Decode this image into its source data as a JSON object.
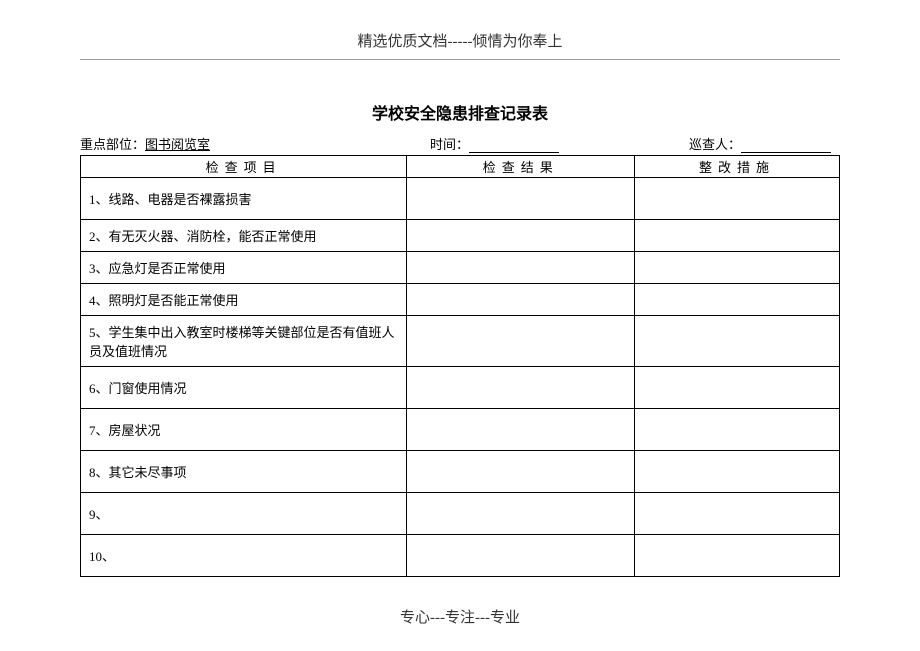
{
  "header": {
    "top_text": "精选优质文档-----倾情为你奉上",
    "title": "学校安全隐患排查记录表"
  },
  "meta": {
    "location_label": "重点部位：",
    "location_value": "图书阅览室",
    "time_label": "时间：",
    "time_value": "",
    "inspector_label": "巡查人：",
    "inspector_value": ""
  },
  "table": {
    "columns": {
      "item": "检查项目",
      "result": "检查结果",
      "action": "整改措施"
    },
    "rows": [
      {
        "item": "1、线路、电器是否裸露损害",
        "result": "",
        "action": "",
        "tall": true
      },
      {
        "item": "2、有无灭火器、消防栓，能否正常使用",
        "result": "",
        "action": "",
        "tall": false
      },
      {
        "item": "3、应急灯是否正常使用",
        "result": "",
        "action": "",
        "tall": false
      },
      {
        "item": "4、照明灯是否能正常使用",
        "result": "",
        "action": "",
        "tall": false
      },
      {
        "item": "5、学生集中出入教室时楼梯等关键部位是否有值班人员及值班情况",
        "result": "",
        "action": "",
        "tall": true
      },
      {
        "item": "6、门窗使用情况",
        "result": "",
        "action": "",
        "tall": true
      },
      {
        "item": "7、房屋状况",
        "result": "",
        "action": "",
        "tall": true
      },
      {
        "item": "8、其它未尽事项",
        "result": "",
        "action": "",
        "tall": true
      },
      {
        "item": "9、",
        "result": "",
        "action": "",
        "tall": true
      },
      {
        "item": "10、",
        "result": "",
        "action": "",
        "tall": true
      }
    ]
  },
  "footer": {
    "text": "专心---专注---专业"
  }
}
